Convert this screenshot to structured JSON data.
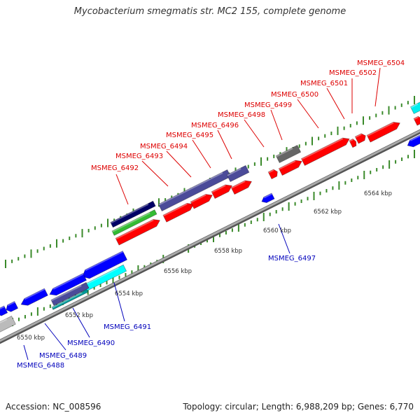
{
  "title": "Mycobacterium smegmatis str. MC2 155, complete genome",
  "footer": {
    "accession": "Accession: NC_008596",
    "summary": "Topology: circular; Length: 6,988,209 bp; Genes: 6,770"
  },
  "colors": {
    "forward_gene": "#ff0000",
    "reverse_gene": "#0000ff",
    "forward_label": "#dd0000",
    "reverse_label": "#0000bb",
    "tick": "#3a8a2a",
    "backbone": "#888888",
    "cds_violet": "#4b4b99",
    "cds_green": "#33bb33",
    "cds_navy": "#000066",
    "cds_cyan": "#00ffff",
    "cds_gray": "#666666",
    "cds_light_gray": "#bbbbbb",
    "cds_teal": "#009999"
  },
  "scale_labels": [
    "6550 kbp",
    "6552 kbp",
    "6554 kbp",
    "6556 kbp",
    "6558 kbp",
    "6560 kbp",
    "6562 kbp",
    "6564 kbp"
  ],
  "forward_genes": [
    "MSMEG_6492",
    "MSMEG_6493",
    "MSMEG_6494",
    "MSMEG_6495",
    "MSMEG_6496",
    "MSMEG_6498",
    "MSMEG_6499",
    "MSMEG_6500",
    "MSMEG_6501",
    "MSMEG_6502",
    "MSMEG_6504"
  ],
  "reverse_genes": [
    "MSMEG_6488",
    "MSMEG_6489",
    "MSMEG_6490",
    "MSMEG_6491",
    "MSMEG_6497"
  ]
}
